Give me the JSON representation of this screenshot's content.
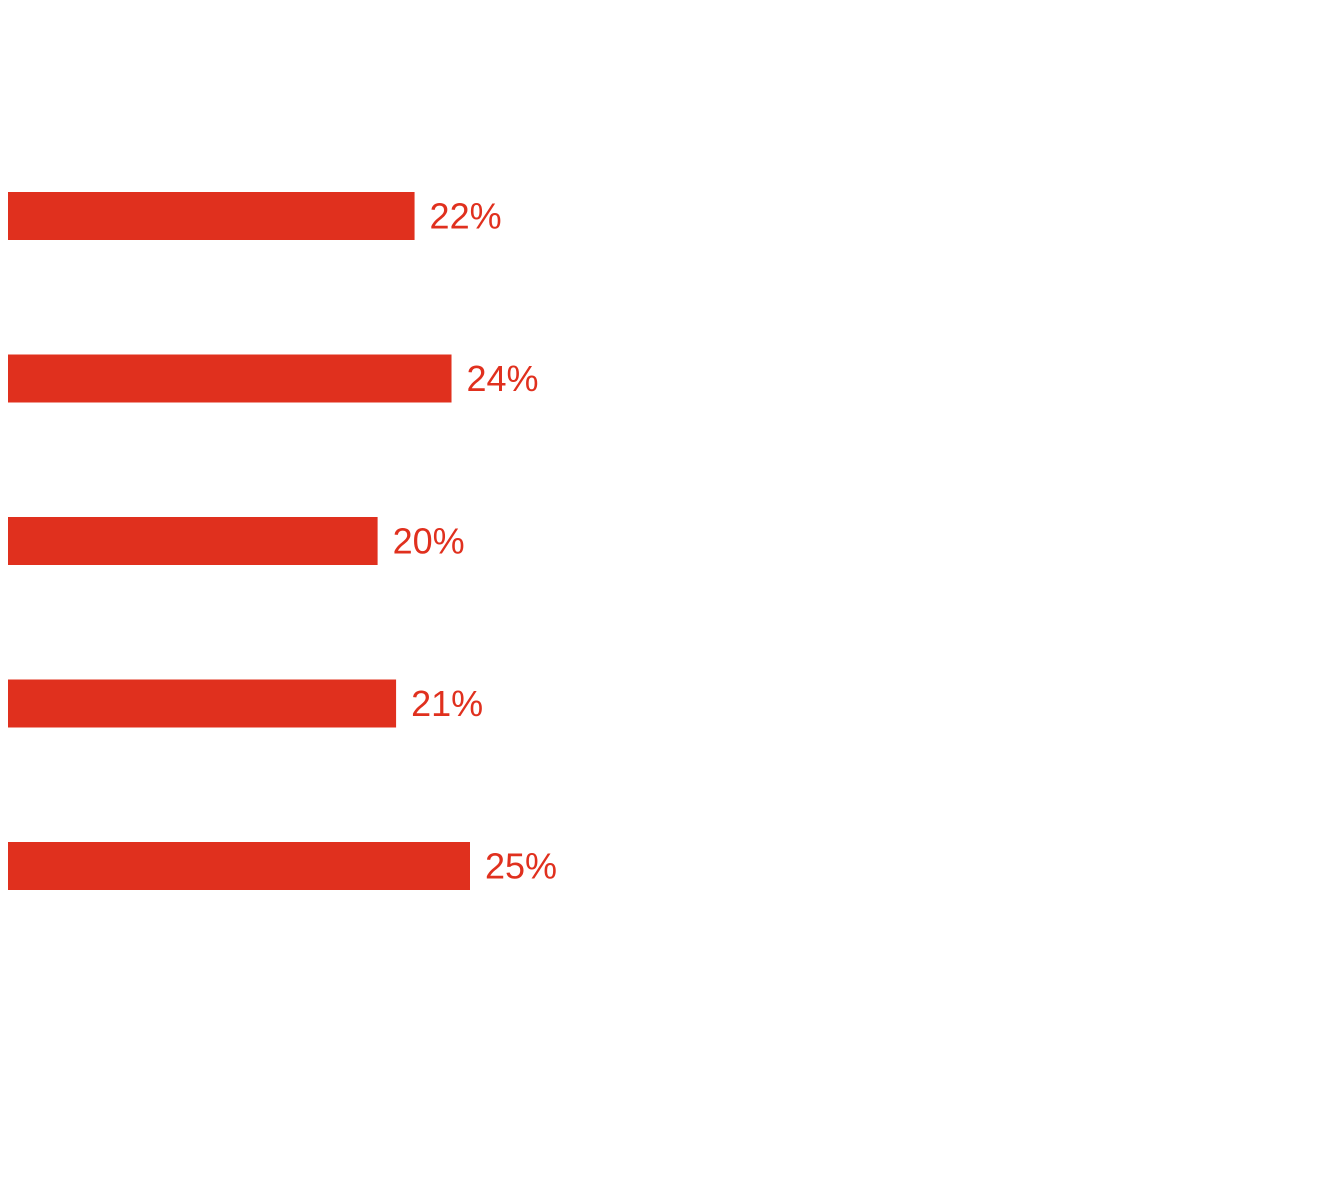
{
  "chart_data": {
    "type": "bar",
    "orientation": "horizontal",
    "categories": [
      "",
      "",
      "",
      "",
      ""
    ],
    "values": [
      22,
      24,
      20,
      21,
      25
    ],
    "value_labels": [
      "22%",
      "24%",
      "20%",
      "21%",
      "25%"
    ],
    "unit": "%",
    "title": "",
    "xlabel": "",
    "ylabel": "",
    "xlim": [
      0,
      25
    ],
    "grid": false,
    "legend": "none",
    "colors": {
      "bar": "#e0301e",
      "label": "#e0301e",
      "background": "#ffffff"
    }
  }
}
